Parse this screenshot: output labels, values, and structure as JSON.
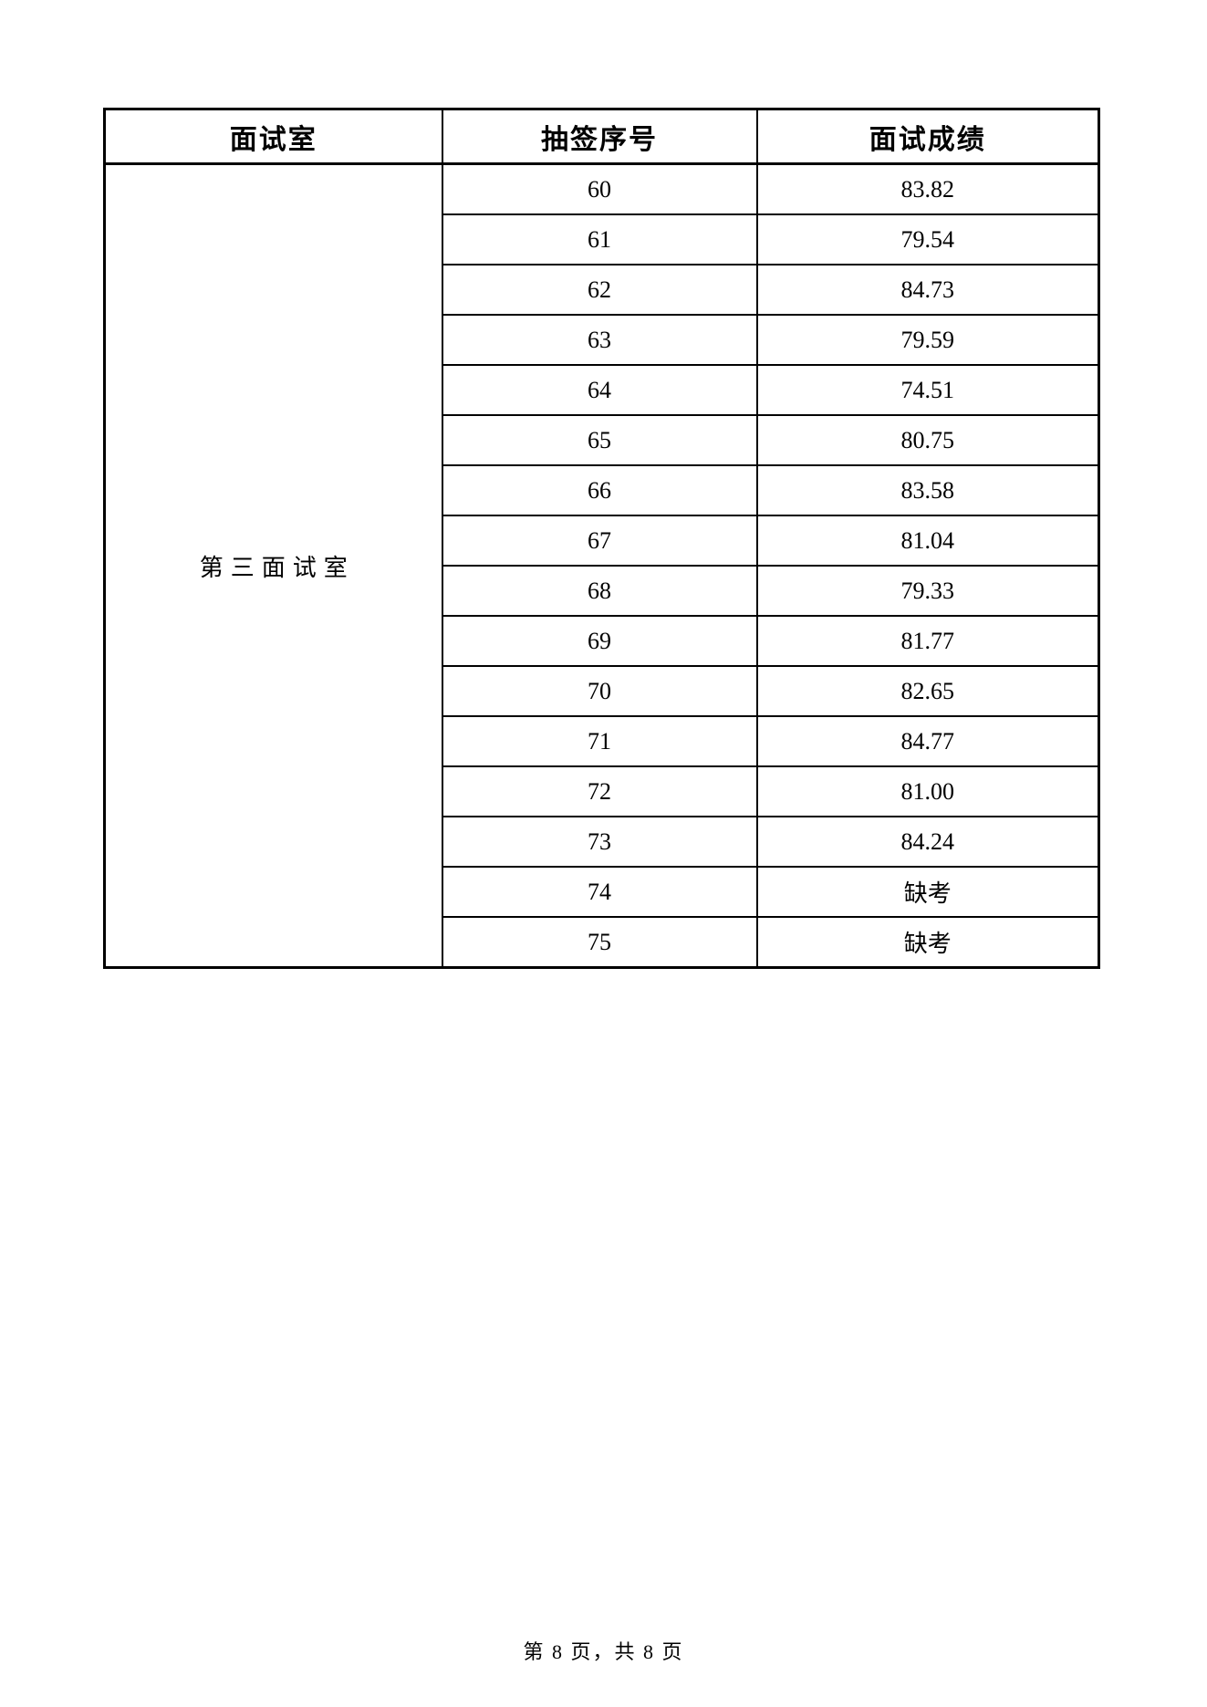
{
  "page": {
    "footer": "第 8 页，共 8 页"
  },
  "table": {
    "headers": {
      "room": "面试室",
      "number": "抽签序号",
      "score": "面试成绩"
    },
    "room": "第三面试室",
    "rows": [
      {
        "no": "60",
        "score": "83.82"
      },
      {
        "no": "61",
        "score": "79.54"
      },
      {
        "no": "62",
        "score": "84.73"
      },
      {
        "no": "63",
        "score": "79.59"
      },
      {
        "no": "64",
        "score": "74.51"
      },
      {
        "no": "65",
        "score": "80.75"
      },
      {
        "no": "66",
        "score": "83.58"
      },
      {
        "no": "67",
        "score": "81.04"
      },
      {
        "no": "68",
        "score": "79.33"
      },
      {
        "no": "69",
        "score": "81.77"
      },
      {
        "no": "70",
        "score": "82.65"
      },
      {
        "no": "71",
        "score": "84.77"
      },
      {
        "no": "72",
        "score": "81.00"
      },
      {
        "no": "73",
        "score": "84.24"
      },
      {
        "no": "74",
        "score": "缺考"
      },
      {
        "no": "75",
        "score": "缺考"
      }
    ]
  }
}
